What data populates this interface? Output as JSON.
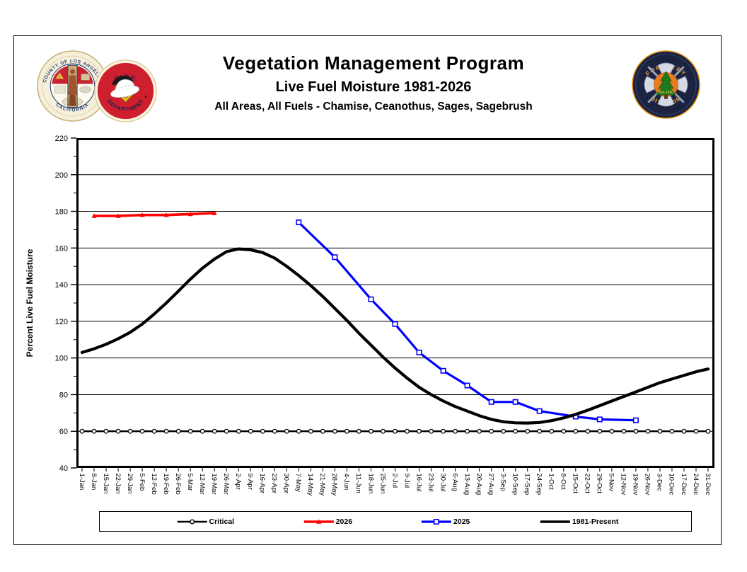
{
  "header": {
    "title": "Vegetation Management Program",
    "subtitle": "Live Fuel Moisture 1981-2026",
    "subtitle2": "All Areas, All Fuels - Chamise, Ceanothus, Sages, Sagebrush"
  },
  "logos": {
    "county_seal": {
      "ring_top": "COUNTY OF LOS ANGELES",
      "ring_bottom": "CALIFORNIA"
    },
    "fire_dept": {
      "ring_top": "FIRE",
      "ring_bottom": "DEPARTMENT"
    },
    "forestry": {
      "ring_top": "FORESTRY",
      "ring_bottom": "DIVISION",
      "est": "Est. 1911"
    }
  },
  "chart_data": {
    "type": "line",
    "title": "Vegetation Management Program",
    "subtitle": "Live Fuel Moisture 1981-2026",
    "subtitle2": "All Areas, All Fuels - Chamise, Ceanothus, Sages, Sagebrush",
    "xlabel": "",
    "ylabel": "Percent Live Fuel Moisture",
    "ylim": [
      40,
      220
    ],
    "ytick_step": 20,
    "ytick_minor_step": 10,
    "grid": "horizontal",
    "legend_position": "bottom",
    "categories": [
      "1-Jan",
      "8-Jan",
      "15-Jan",
      "22-Jan",
      "29-Jan",
      "5-Feb",
      "12-Feb",
      "19-Feb",
      "26-Feb",
      "5-Mar",
      "12-Mar",
      "19-Mar",
      "26-Mar",
      "2-Apr",
      "9-Apr",
      "16-Apr",
      "23-Apr",
      "30-Apr",
      "7-May",
      "14-May",
      "21-May",
      "28-May",
      "4-Jun",
      "11-Jun",
      "18-Jun",
      "25-Jun",
      "2-Jul",
      "9-Jul",
      "16-Jul",
      "23-Jul",
      "30-Jul",
      "6-Aug",
      "13-Aug",
      "20-Aug",
      "27-Aug",
      "3-Sep",
      "10-Sep",
      "17-Sep",
      "24-Sep",
      "1-Oct",
      "8-Oct",
      "15-Oct",
      "22-Oct",
      "29-Oct",
      "5-Nov",
      "12-Nov",
      "19-Nov",
      "26-Nov",
      "3-Dec",
      "10-Dec",
      "17-Dec",
      "24-Dec",
      "31-Dec"
    ],
    "series": [
      {
        "name": "Critical",
        "color": "#000000",
        "marker": "circle",
        "line_width": 2.4,
        "constant": 60
      },
      {
        "name": "2026",
        "color": "#ff0000",
        "marker": "triangle",
        "line_width": 3.6,
        "points": [
          [
            "8-Jan",
            177.5
          ],
          [
            "22-Jan",
            177.5
          ],
          [
            "5-Feb",
            178
          ],
          [
            "19-Feb",
            178
          ],
          [
            "5-Mar",
            178.5
          ],
          [
            "19-Mar",
            179
          ]
        ]
      },
      {
        "name": "2025",
        "color": "#0000ff",
        "marker": "square",
        "line_width": 3.2,
        "points": [
          [
            "7-May",
            174
          ],
          [
            "28-May",
            155
          ],
          [
            "18-Jun",
            132
          ],
          [
            "2-Jul",
            118.5
          ],
          [
            "16-Jul",
            103
          ],
          [
            "30-Jul",
            93
          ],
          [
            "13-Aug",
            85
          ],
          [
            "27-Aug",
            76
          ],
          [
            "10-Sep",
            76
          ],
          [
            "24-Sep",
            71
          ],
          [
            "15-Oct",
            68
          ],
          [
            "29-Oct",
            66.5
          ],
          [
            "19-Nov",
            66
          ]
        ]
      },
      {
        "name": "1981-Present",
        "color": "#000000",
        "marker": "none",
        "line_width": 4.2,
        "values": [
          103,
          105,
          107.5,
          110.5,
          114,
          118.5,
          124,
          130,
          136.5,
          143,
          149,
          154,
          158,
          159.5,
          159,
          157.5,
          154.5,
          150,
          145,
          139.5,
          133.5,
          127,
          120.5,
          113.5,
          107,
          100.5,
          94.5,
          89,
          84,
          80,
          76.5,
          73.5,
          71,
          68.5,
          66.5,
          65.2,
          64.6,
          64.5,
          64.8,
          65.8,
          67.3,
          69.2,
          71.5,
          74,
          76.5,
          79,
          81.5,
          84,
          86.5,
          88.5,
          90.5,
          92.5,
          94
        ]
      }
    ]
  }
}
